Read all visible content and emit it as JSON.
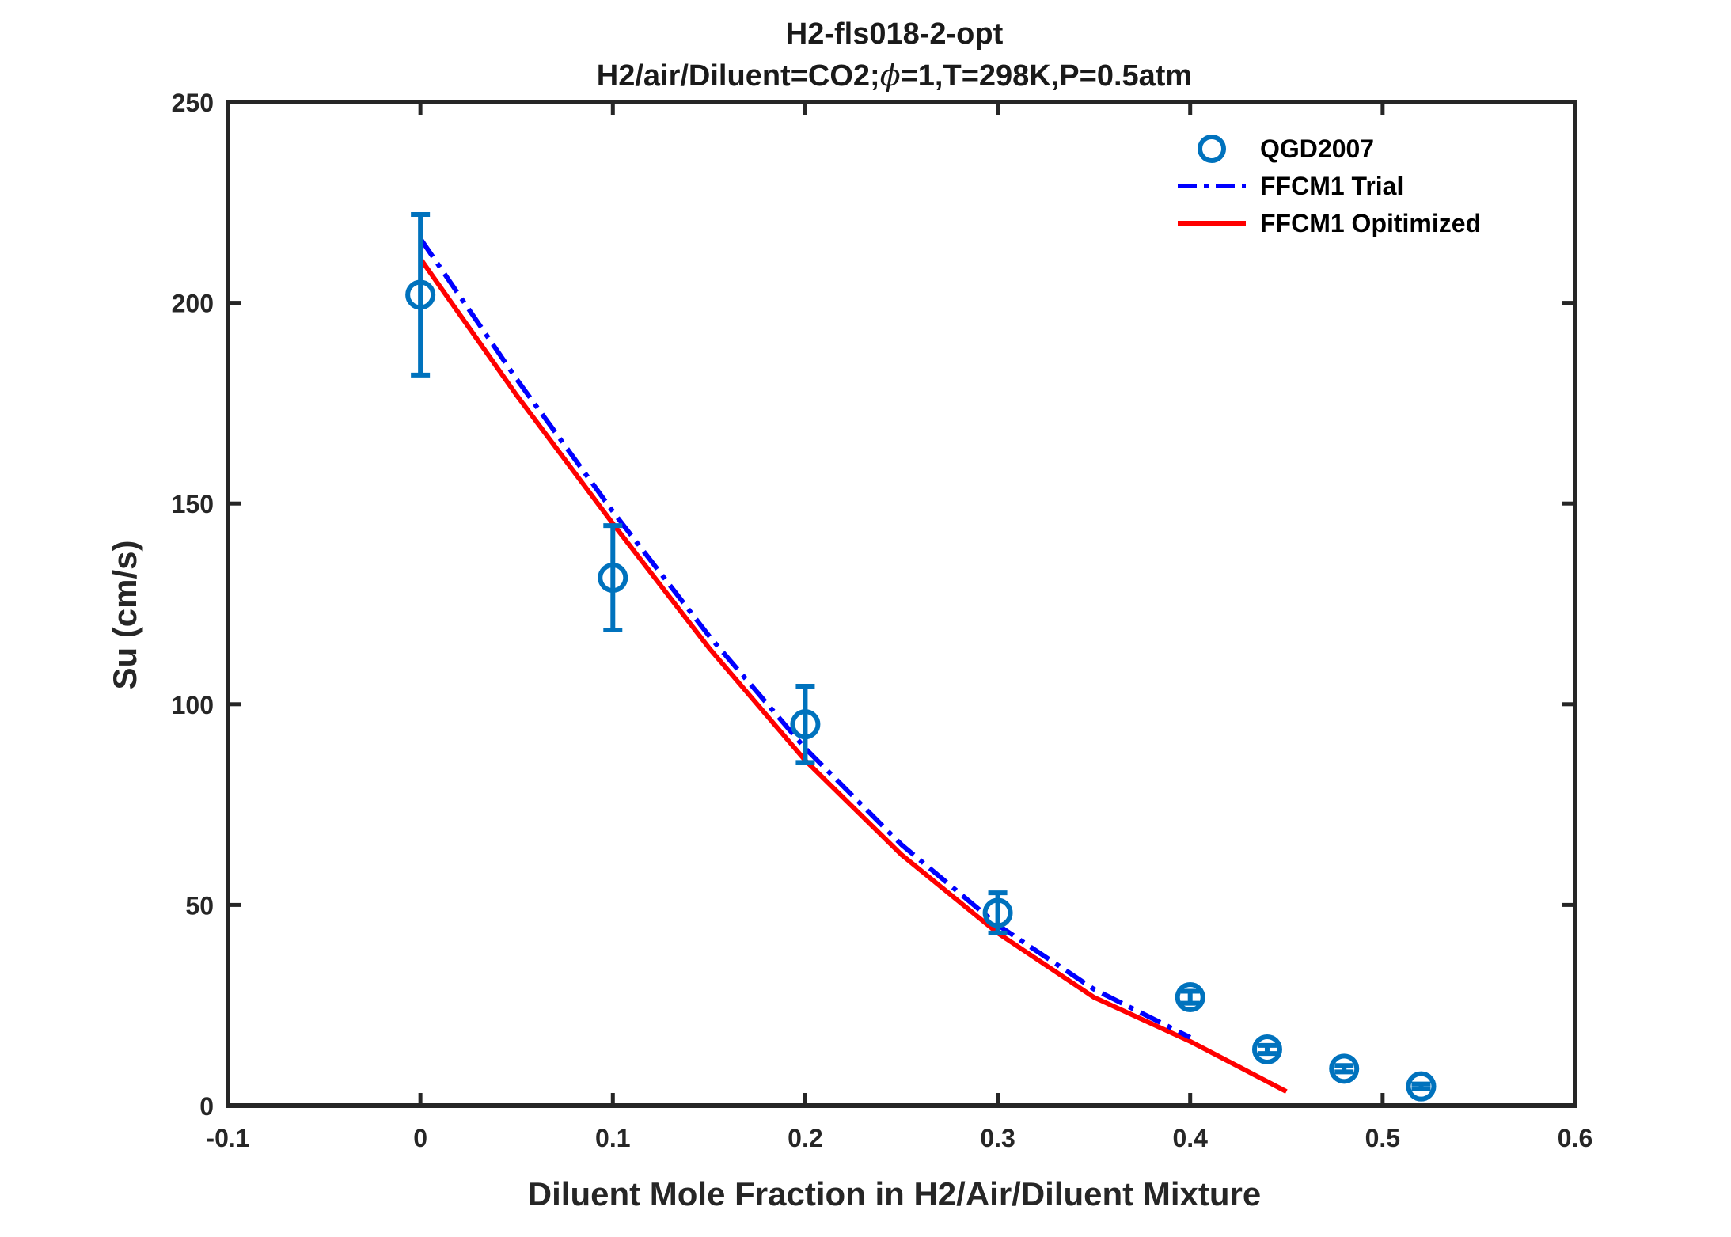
{
  "chart_data": {
    "type": "scatter",
    "title": "H2-fls018-2-opt",
    "subtitle_prefix": "H2/air/Diluent=CO2;",
    "subtitle_symbol": "ϕ",
    "subtitle_suffix": "=1,T=298K,P=0.5atm",
    "xlabel": "Diluent Mole Fraction in H2/Air/Diluent Mixture",
    "ylabel": "Su (cm/s)",
    "xlim": [
      -0.1,
      0.6
    ],
    "ylim": [
      0,
      250
    ],
    "xticks": [
      -0.1,
      0,
      0.1,
      0.2,
      0.3,
      0.4,
      0.5,
      0.6
    ],
    "xtick_labels": [
      "-0.1",
      "0",
      "0.1",
      "0.2",
      "0.3",
      "0.4",
      "0.5",
      "0.6"
    ],
    "yticks": [
      0,
      50,
      100,
      150,
      200,
      250
    ],
    "ytick_labels": [
      "0",
      "50",
      "100",
      "150",
      "200",
      "250"
    ],
    "grid": false,
    "legend_position": "top-right",
    "series": [
      {
        "name": "QGD2007",
        "kind": "markers-errorbars",
        "color": "#0072BD",
        "x": [
          0,
          0.1,
          0.2,
          0.3,
          0.4,
          0.44,
          0.48,
          0.52
        ],
        "y": [
          202,
          131.5,
          95,
          48,
          27,
          14,
          9.2,
          4.8
        ],
        "err": [
          20,
          13,
          9.5,
          5,
          1.5,
          1,
          0.8,
          0.6
        ]
      },
      {
        "name": "FFCM1 Trial",
        "kind": "dashdot-line",
        "color": "#0000FF",
        "x": [
          0,
          0.05,
          0.1,
          0.15,
          0.2,
          0.25,
          0.3,
          0.35,
          0.4
        ],
        "y": [
          216,
          181,
          148,
          117,
          89,
          65,
          45,
          29,
          17
        ]
      },
      {
        "name": "FFCM1 Opitimized",
        "kind": "solid-line",
        "color": "#FF0000",
        "x": [
          0,
          0.05,
          0.1,
          0.15,
          0.2,
          0.25,
          0.3,
          0.35,
          0.4,
          0.45
        ],
        "y": [
          211,
          177,
          145,
          114,
          86,
          62.5,
          43,
          27,
          16,
          3.5
        ]
      }
    ]
  }
}
